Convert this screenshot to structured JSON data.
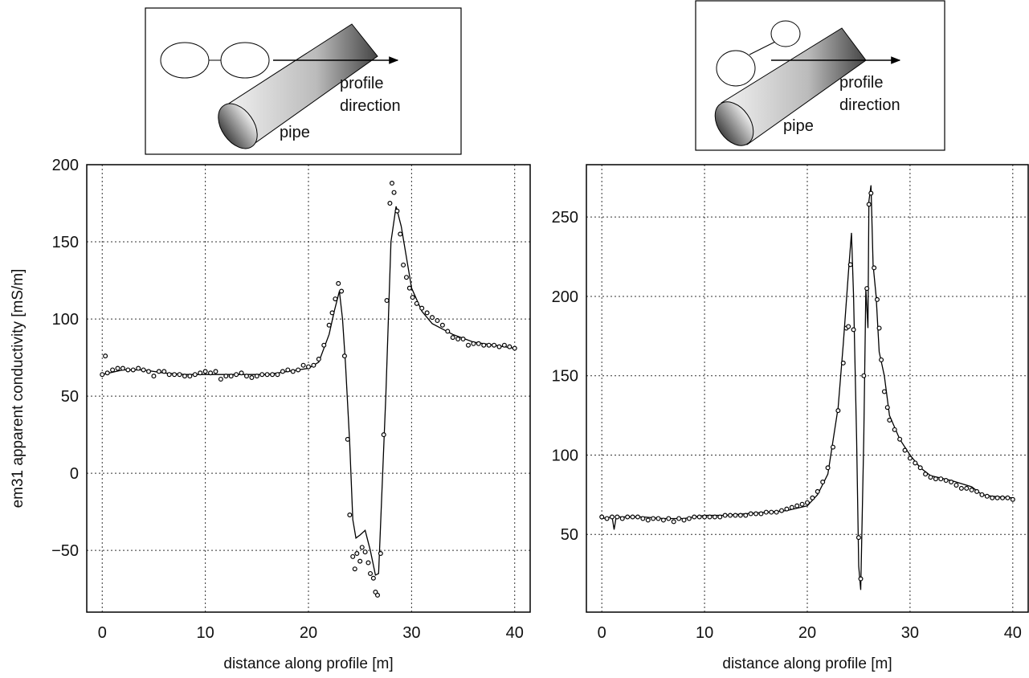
{
  "chart_data": [
    {
      "type": "line",
      "annotations": [
        "profile",
        "direction",
        "pipe"
      ],
      "x_label": "distance along profile [m]",
      "y_label": "em31 apparent conductivity [mS/m]",
      "xlim": [
        -1.5,
        41.5
      ],
      "ylim": [
        -90,
        200
      ],
      "xticks": [
        0,
        10,
        20,
        30,
        40
      ],
      "yticks": [
        {
          "value": -50,
          "label": "−50"
        },
        0,
        50,
        100,
        150,
        200
      ],
      "grid": true,
      "series": [
        {
          "mode": "line",
          "color": "#000000",
          "x": [
            0,
            2,
            4,
            6,
            8,
            10,
            12,
            14,
            16,
            18,
            20,
            21,
            22,
            22.5,
            23,
            23.3,
            23.6,
            24,
            24.3,
            24.6,
            25,
            25.5,
            26,
            26.5,
            26.8,
            27.5,
            28,
            28.5,
            29,
            30,
            31,
            32,
            34,
            36,
            38,
            40
          ],
          "values": [
            64,
            67,
            67,
            65,
            64,
            64,
            64,
            64,
            64,
            66,
            68,
            72,
            90,
            105,
            118,
            100,
            70,
            20,
            -30,
            -42,
            -40,
            -37,
            -50,
            -66,
            -65,
            50,
            150,
            173,
            160,
            120,
            105,
            97,
            90,
            85,
            83,
            81
          ]
        },
        {
          "mode": "markers",
          "color": "#000000",
          "x": [
            0,
            0.3,
            0.5,
            1,
            1.5,
            2,
            2.5,
            3,
            3.5,
            4,
            4.5,
            5,
            5.5,
            6,
            6.5,
            7,
            7.5,
            8,
            8.5,
            9,
            9.5,
            10,
            10.5,
            11,
            11.5,
            12,
            12.5,
            13,
            13.5,
            14,
            14.5,
            15,
            15.5,
            16,
            16.5,
            17,
            17.5,
            18,
            18.5,
            19,
            19.5,
            20,
            20.5,
            21,
            21.5,
            22,
            22.3,
            22.6,
            22.9,
            23.2,
            23.5,
            23.8,
            24,
            24.3,
            24.5,
            24.7,
            25,
            25.2,
            25.5,
            25.8,
            26,
            26.3,
            26.5,
            26.7,
            27,
            27.3,
            27.6,
            27.9,
            28.1,
            28.3,
            28.6,
            28.9,
            29.2,
            29.5,
            29.8,
            30.1,
            30.5,
            31,
            31.5,
            32,
            32.5,
            33,
            33.5,
            34,
            34.5,
            35,
            35.5,
            36,
            36.5,
            37,
            37.5,
            38,
            38.5,
            39,
            39.5,
            40
          ],
          "values": [
            64,
            76,
            65,
            67,
            68,
            68,
            67,
            67,
            68,
            67,
            66,
            63,
            66,
            66,
            64,
            64,
            64,
            63,
            63,
            64,
            65,
            66,
            65,
            66,
            61,
            63,
            63,
            64,
            65,
            63,
            62,
            63,
            64,
            64,
            64,
            64,
            66,
            67,
            66,
            67,
            70,
            69,
            70,
            74,
            83,
            96,
            104,
            113,
            123,
            118,
            76,
            22,
            -27,
            -54,
            -62,
            -52,
            -57,
            -48,
            -51,
            -58,
            -65,
            -68,
            -77,
            -79,
            -52,
            25,
            112,
            175,
            188,
            182,
            170,
            155,
            135,
            127,
            120,
            114,
            110,
            107,
            104,
            101,
            99,
            96,
            92,
            88,
            87,
            87,
            83,
            84,
            84,
            83,
            83,
            83,
            82,
            83,
            82,
            81
          ]
        }
      ]
    },
    {
      "type": "line",
      "annotations": [
        "profile",
        "direction",
        "pipe"
      ],
      "x_label": "distance along profile [m]",
      "xlim": [
        -1.5,
        41.5
      ],
      "ylim": [
        1,
        283
      ],
      "xticks": [
        0,
        10,
        20,
        30,
        40
      ],
      "yticks": [
        50,
        100,
        150,
        200,
        250
      ],
      "grid": true,
      "series": [
        {
          "mode": "line",
          "color": "#000000",
          "x": [
            0,
            1,
            1.2,
            1.4,
            2,
            4,
            6,
            8,
            10,
            12,
            14,
            16,
            18,
            20,
            21,
            22,
            23,
            23.5,
            24,
            24.3,
            24.5,
            24.8,
            25,
            25.2,
            25.5,
            25.7,
            25.9,
            26,
            26.2,
            26.4,
            26.7,
            27,
            27.5,
            28,
            29,
            30,
            31,
            32,
            34,
            36,
            37,
            38,
            40
          ],
          "values": [
            60,
            61,
            53,
            61,
            61,
            61,
            60,
            60,
            62,
            62,
            63,
            64,
            65,
            68,
            75,
            88,
            130,
            170,
            215,
            240,
            200,
            110,
            30,
            15,
            110,
            205,
            180,
            260,
            270,
            220,
            200,
            165,
            150,
            125,
            110,
            100,
            92,
            87,
            84,
            80,
            75,
            74,
            73
          ]
        },
        {
          "mode": "markers",
          "color": "#000000",
          "x": [
            0,
            0.5,
            1,
            1.5,
            2,
            2.5,
            3,
            3.5,
            4,
            4.5,
            5,
            5.5,
            6,
            6.5,
            7,
            7.5,
            8,
            8.5,
            9,
            9.5,
            10,
            10.5,
            11,
            11.5,
            12,
            12.5,
            13,
            13.5,
            14,
            14.5,
            15,
            15.5,
            16,
            16.5,
            17,
            17.5,
            18,
            18.5,
            19,
            19.5,
            20,
            20.5,
            21,
            21.5,
            22,
            22.5,
            23,
            23.5,
            23.8,
            24,
            24.2,
            24.5,
            25,
            25.2,
            25.5,
            25.8,
            26,
            26.2,
            26.5,
            26.8,
            27,
            27.2,
            27.5,
            27.8,
            28,
            28.5,
            29,
            29.5,
            30,
            30.5,
            31,
            31.5,
            32,
            32.5,
            33,
            33.5,
            34,
            34.5,
            35,
            35.5,
            36,
            36.5,
            37,
            37.5,
            38,
            38.5,
            39,
            39.5,
            40
          ],
          "values": [
            61,
            60,
            61,
            61,
            60,
            61,
            61,
            61,
            60,
            59,
            60,
            60,
            59,
            60,
            58,
            60,
            59,
            60,
            61,
            61,
            61,
            61,
            61,
            61,
            62,
            62,
            62,
            62,
            62,
            63,
            63,
            63,
            64,
            64,
            64,
            65,
            66,
            67,
            68,
            69,
            70,
            73,
            77,
            83,
            92,
            105,
            128,
            158,
            180,
            181,
            220,
            179,
            48,
            22,
            150,
            205,
            258,
            265,
            218,
            198,
            180,
            160,
            140,
            130,
            122,
            116,
            110,
            103,
            98,
            95,
            92,
            88,
            86,
            85,
            85,
            84,
            83,
            81,
            79,
            79,
            78,
            77,
            75,
            74,
            73,
            73,
            73,
            73,
            72
          ]
        }
      ]
    }
  ]
}
